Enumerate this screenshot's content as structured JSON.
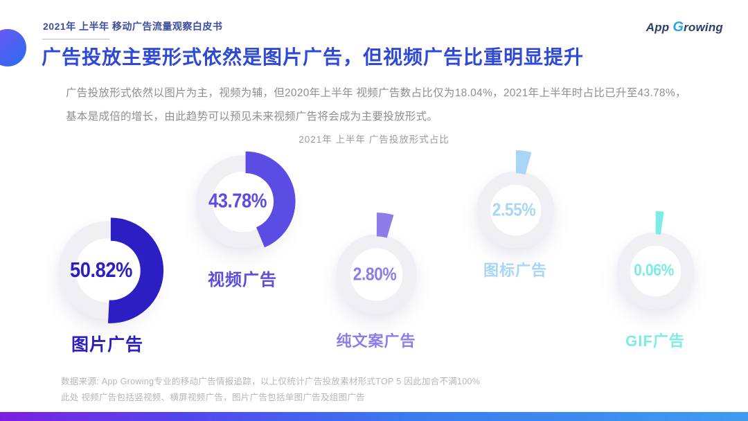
{
  "page": {
    "eyebrow": "2021年 上半年 移动广告流量观察白皮书",
    "title": "广告投放主要形式依然是图片广告，但视频广告比重明显提升",
    "paragraph_lines": [
      "广告投放形式依然以图片为主，视频为辅，但2020年上半年 视频广告数占比仅为18.04%，2021年上半年时占比已升至43.78%，",
      "基本是成倍的增长，由此趋势可以预见未来视频广告将会成为主要投放形式。"
    ],
    "logo": {
      "part1": "App",
      "part2": "G",
      "part3": "rowing"
    },
    "footer_lines": [
      "数据来源: App Growing专业的移动广告情报追踪，以上仅统计广告投放素材形式TOP 5 因此加合不满100%",
      "此处 视频广告包括竖视频、横屏视频广告，图片广告包括单图广告及组图广告"
    ]
  },
  "chart_data": {
    "type": "pie",
    "title": "2021年 上半年 广告投放形式占比",
    "categories": [
      "图片广告",
      "视频广告",
      "纯文案广告",
      "图标广告",
      "GIF广告"
    ],
    "values": [
      50.82,
      43.78,
      2.8,
      2.55,
      0.06
    ],
    "value_labels": [
      "50.82%",
      "43.78%",
      "2.80%",
      "2.55%",
      "0.06%"
    ],
    "colors": [
      "#2b1fc3",
      "#5b4ce4",
      "#8d7ce9",
      "#a9d6f5",
      "#7debe6"
    ],
    "ring_color": "#efeff4",
    "legend_position": "below-each-donut",
    "layout_hint": "five exploded donut gauges, arcs start at 12 o'clock clockwise"
  },
  "colors": {
    "title_blue": "#2d49d6",
    "eyebrow_blue": "#3d4f9c",
    "body_gray": "#8f8f8f",
    "footer_gray": "#b7b7b7",
    "bottom_bar_gradient": [
      "#7b20e3",
      "#3a7bf0",
      "#3f9bf0"
    ]
  }
}
